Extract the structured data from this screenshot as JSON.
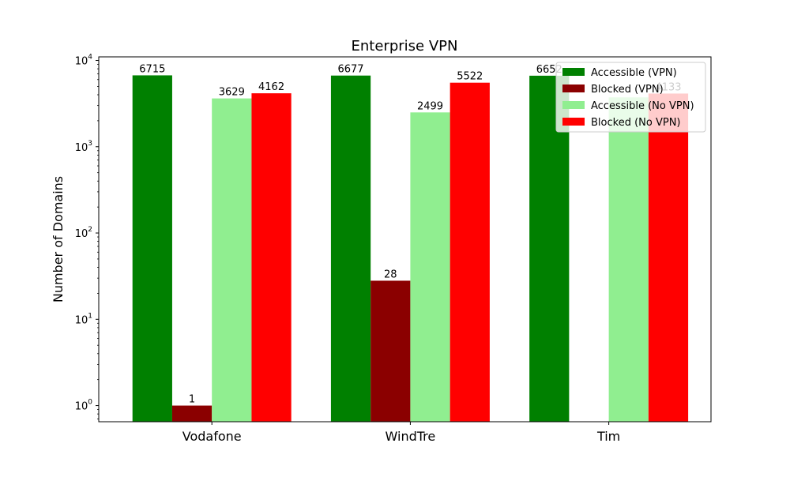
{
  "chart_data": {
    "type": "bar",
    "title": "Enterprise VPN",
    "xlabel": "",
    "ylabel": "Number of Domains",
    "yscale": "log",
    "ylim": [
      0.65,
      11000
    ],
    "categories": [
      "Vodafone",
      "WindTre",
      "Tim"
    ],
    "yticks": [
      {
        "value": 1,
        "base": "10",
        "exp": "0"
      },
      {
        "value": 10,
        "base": "10",
        "exp": "1"
      },
      {
        "value": 100,
        "base": "10",
        "exp": "2"
      },
      {
        "value": 1000,
        "base": "10",
        "exp": "3"
      },
      {
        "value": 10000,
        "base": "10",
        "exp": "4"
      }
    ],
    "series": [
      {
        "name": "Accessible (VPN)",
        "color": "#008000",
        "values": [
          6715,
          6677,
          6652
        ],
        "labels": [
          "6715",
          "6677",
          "6652"
        ]
      },
      {
        "name": "Blocked (VPN)",
        "color": "#8b0000",
        "values": [
          1,
          28,
          0
        ],
        "labels": [
          "1",
          "28",
          ""
        ]
      },
      {
        "name": "Accessible (No VPN)",
        "color": "#90ee90",
        "values": [
          3629,
          2499,
          3733
        ],
        "labels": [
          "3629",
          "2499",
          ""
        ]
      },
      {
        "name": "Blocked (No VPN)",
        "color": "#ff0000",
        "values": [
          4162,
          5522,
          4133
        ],
        "labels": [
          "4162",
          "5522",
          "4133"
        ]
      }
    ],
    "grid": false,
    "legend_position": "top-right"
  }
}
